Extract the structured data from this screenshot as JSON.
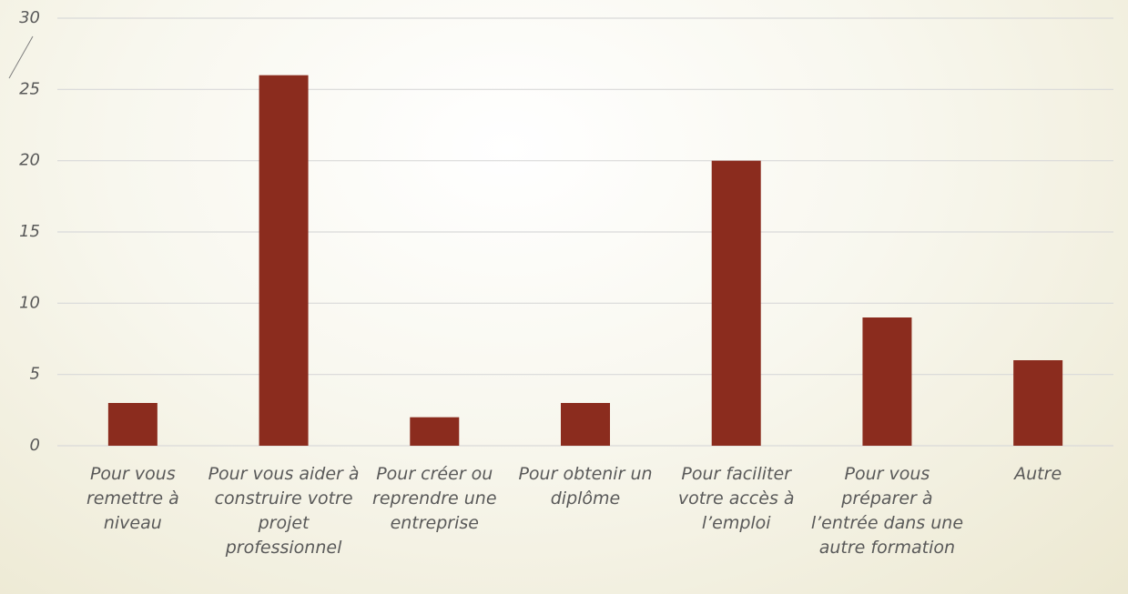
{
  "chart_data": {
    "type": "bar",
    "categories": [
      "Pour vous remettre à niveau",
      "Pour vous aider à construire votre projet professionnel",
      "Pour créer ou reprendre une entreprise",
      "Pour obtenir un diplôme",
      "Pour faciliter votre accès à l’emploi",
      "Pour vous préparer à l’entrée dans une autre formation",
      "Autre"
    ],
    "values": [
      3,
      26,
      2,
      3,
      20,
      9,
      6
    ],
    "color": "#8b2c1e",
    "ylim": [
      0,
      30
    ],
    "yticks": [
      0,
      5,
      10,
      15,
      20,
      25,
      30
    ],
    "grid": true
  }
}
